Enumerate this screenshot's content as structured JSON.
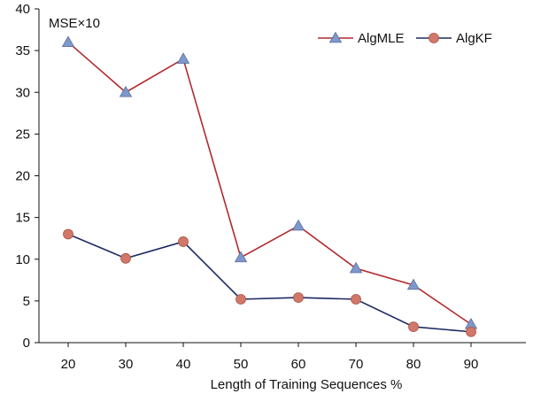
{
  "chart_data": {
    "type": "line",
    "title": "",
    "ylabel_annotation": "MSE×10",
    "xlabel": "Length of Training Sequences %",
    "ylabel": "",
    "categories": [
      "20",
      "30",
      "40",
      "50",
      "60",
      "70",
      "80",
      "90"
    ],
    "ylim": [
      0,
      40
    ],
    "yticks": [
      0,
      5,
      10,
      15,
      20,
      25,
      30,
      35,
      40
    ],
    "grid": false,
    "legend_position": "top-right",
    "series": [
      {
        "name": "AlgMLE",
        "marker": "triangle",
        "line_color": "#b22a2e",
        "marker_color": "#7d98cc",
        "values": [
          36,
          30,
          34,
          10.2,
          14,
          8.9,
          6.9,
          2.2
        ]
      },
      {
        "name": "AlgKF",
        "marker": "circle",
        "line_color": "#1e2a63",
        "marker_color": "#d2786a",
        "values": [
          13,
          10.1,
          12.1,
          5.2,
          5.4,
          5.2,
          1.9,
          1.3
        ]
      }
    ]
  }
}
